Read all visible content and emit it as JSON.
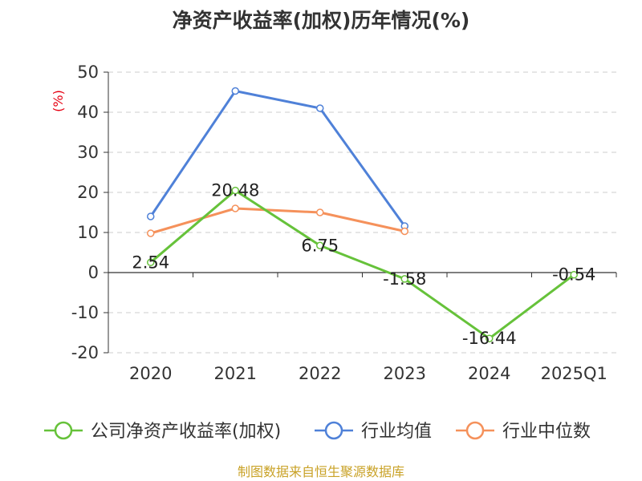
{
  "chart_data": {
    "type": "line",
    "title": "净资产收益率(加权)历年情况(%)",
    "ylabel": "(%)",
    "categories": [
      "2020",
      "2021",
      "2022",
      "2023",
      "2024",
      "2025Q1"
    ],
    "ylim": [
      -20,
      50
    ],
    "yticks": [
      50,
      40,
      30,
      20,
      10,
      0,
      -10,
      -20
    ],
    "grid": "horizontal-dashed",
    "legend_position": "bottom",
    "series": [
      {
        "name": "公司净资产收益率(加权)",
        "color": "#66c23a",
        "values": [
          2.54,
          20.48,
          6.75,
          -1.58,
          -16.44,
          -0.54
        ],
        "labels": [
          "2.54",
          "20.48",
          "6.75",
          "-1.58",
          "-16.44",
          "-0.54"
        ]
      },
      {
        "name": "行业均值",
        "color": "#4f81d8",
        "values": [
          14.0,
          45.3,
          41.0,
          11.6,
          null,
          null
        ]
      },
      {
        "name": "行业中位数",
        "color": "#f5915b",
        "values": [
          9.8,
          16.0,
          15.0,
          10.3,
          null,
          null
        ]
      }
    ]
  },
  "source": "制图数据来自恒生聚源数据库"
}
